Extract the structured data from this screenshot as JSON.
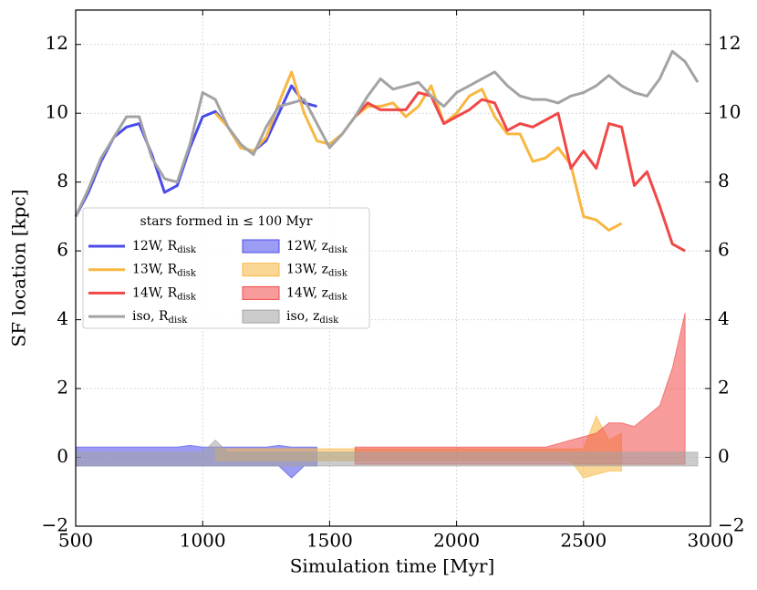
{
  "chart_data": {
    "type": "line",
    "xlabel": "Simulation time [Myr]",
    "ylabel": "SF location [kpc]",
    "xlim": [
      500,
      3000
    ],
    "ylim": [
      -2,
      13
    ],
    "xticks": [
      500,
      1000,
      1500,
      2000,
      2500,
      3000
    ],
    "yticks": [
      {
        "value": -2,
        "label": "−2"
      },
      0,
      2,
      4,
      6,
      8,
      10,
      12
    ],
    "grid": true,
    "legend_title": "stars formed in ≤ 100 Myr",
    "x": [
      500,
      550,
      600,
      650,
      700,
      750,
      800,
      850,
      900,
      950,
      1000,
      1050,
      1100,
      1150,
      1200,
      1250,
      1300,
      1350,
      1400,
      1450,
      1500,
      1550,
      1600,
      1650,
      1700,
      1750,
      1800,
      1850,
      1900,
      1950,
      2000,
      2050,
      2100,
      2150,
      2200,
      2250,
      2300,
      2350,
      2400,
      2450,
      2500,
      2550,
      2600,
      2650,
      2700,
      2750,
      2800,
      2850,
      2900,
      2950,
      3000
    ],
    "series": [
      {
        "name": "12W, R",
        "subscript": "disk",
        "color": "#4b4bea",
        "values": [
          7.0,
          7.7,
          8.6,
          9.3,
          9.6,
          9.7,
          8.8,
          7.7,
          7.9,
          9.0,
          9.9,
          10.05,
          9.6,
          9.0,
          8.9,
          9.2,
          10.0,
          10.8,
          10.3,
          10.2,
          null,
          null,
          null,
          null,
          null,
          null,
          null,
          null,
          null,
          null,
          null,
          null,
          null,
          null,
          null,
          null,
          null,
          null,
          null,
          null,
          null,
          null,
          null,
          null,
          null,
          null,
          null,
          null,
          null,
          null,
          null
        ]
      },
      {
        "name": "13W, R",
        "subscript": "disk",
        "color": "#f8b740",
        "values": [
          null,
          null,
          null,
          null,
          null,
          null,
          null,
          null,
          null,
          null,
          null,
          10.0,
          9.6,
          9.0,
          8.9,
          9.3,
          10.3,
          11.2,
          10.0,
          9.2,
          9.1,
          9.4,
          9.9,
          10.2,
          10.2,
          10.3,
          9.9,
          10.2,
          10.8,
          9.7,
          10.0,
          10.5,
          10.7,
          9.9,
          9.4,
          9.4,
          8.6,
          8.7,
          9.0,
          8.5,
          7.0,
          6.9,
          6.6,
          6.8,
          null,
          null,
          null,
          null,
          null,
          null,
          null
        ]
      },
      {
        "name": "14W, R",
        "subscript": "disk",
        "color": "#f04848",
        "values": [
          null,
          null,
          null,
          null,
          null,
          null,
          null,
          null,
          null,
          null,
          null,
          null,
          null,
          null,
          null,
          null,
          null,
          null,
          null,
          null,
          null,
          null,
          9.9,
          10.3,
          10.1,
          10.1,
          10.1,
          10.6,
          10.5,
          9.7,
          9.9,
          10.1,
          10.4,
          10.3,
          9.5,
          9.7,
          9.6,
          9.8,
          10.0,
          8.4,
          8.9,
          8.4,
          9.7,
          9.6,
          7.9,
          8.3,
          7.3,
          6.2,
          6.0,
          null,
          null
        ]
      },
      {
        "name": "iso, R",
        "subscript": "disk",
        "color": "#a3a3a3",
        "values": [
          7.0,
          7.8,
          8.7,
          9.3,
          9.9,
          9.9,
          8.7,
          8.1,
          8.0,
          9.1,
          10.6,
          10.4,
          9.6,
          9.1,
          8.8,
          9.6,
          10.2,
          10.3,
          10.4,
          9.7,
          9.0,
          9.4,
          9.9,
          10.5,
          11.0,
          10.7,
          10.8,
          10.9,
          10.5,
          10.2,
          10.6,
          10.8,
          11.0,
          11.2,
          10.8,
          10.5,
          10.4,
          10.4,
          10.3,
          10.5,
          10.6,
          10.8,
          11.1,
          10.8,
          10.6,
          10.5,
          11.0,
          11.8,
          11.5,
          10.9,
          null
        ]
      }
    ],
    "bands": [
      {
        "name": "12W, z",
        "subscript": "disk",
        "color": "#4b4bea",
        "lower": [
          -0.25,
          -0.25,
          -0.25,
          -0.25,
          -0.25,
          -0.25,
          -0.25,
          -0.25,
          -0.25,
          -0.25,
          -0.25,
          -0.25,
          -0.25,
          -0.25,
          -0.25,
          -0.25,
          -0.25,
          -0.6,
          -0.25,
          -0.25,
          null,
          null,
          null,
          null,
          null,
          null,
          null,
          null,
          null,
          null,
          null,
          null,
          null,
          null,
          null,
          null,
          null,
          null,
          null,
          null,
          null,
          null,
          null,
          null,
          null,
          null,
          null,
          null,
          null,
          null,
          null
        ],
        "upper": [
          0.3,
          0.3,
          0.3,
          0.3,
          0.3,
          0.3,
          0.3,
          0.3,
          0.3,
          0.35,
          0.3,
          0.3,
          0.3,
          0.3,
          0.3,
          0.3,
          0.35,
          0.3,
          0.3,
          0.3,
          null,
          null,
          null,
          null,
          null,
          null,
          null,
          null,
          null,
          null,
          null,
          null,
          null,
          null,
          null,
          null,
          null,
          null,
          null,
          null,
          null,
          null,
          null,
          null,
          null,
          null,
          null,
          null,
          null,
          null,
          null
        ]
      },
      {
        "name": "13W, z",
        "subscript": "disk",
        "color": "#f8b740",
        "lower": [
          null,
          null,
          null,
          null,
          null,
          null,
          null,
          null,
          null,
          null,
          null,
          -0.1,
          -0.1,
          -0.1,
          -0.1,
          -0.1,
          -0.1,
          -0.1,
          -0.1,
          -0.1,
          -0.1,
          -0.1,
          -0.1,
          -0.1,
          -0.1,
          -0.1,
          -0.1,
          -0.1,
          -0.1,
          -0.1,
          -0.1,
          -0.1,
          -0.1,
          -0.1,
          -0.1,
          -0.1,
          -0.1,
          -0.1,
          -0.1,
          -0.1,
          -0.6,
          -0.5,
          -0.4,
          -0.4,
          null,
          null,
          null,
          null,
          null,
          null,
          null
        ],
        "upper": [
          null,
          null,
          null,
          null,
          null,
          null,
          null,
          null,
          null,
          null,
          null,
          0.25,
          0.25,
          0.25,
          0.25,
          0.25,
          0.25,
          0.25,
          0.25,
          0.25,
          0.25,
          0.25,
          0.25,
          0.25,
          0.25,
          0.25,
          0.25,
          0.25,
          0.25,
          0.25,
          0.25,
          0.25,
          0.25,
          0.25,
          0.25,
          0.25,
          0.25,
          0.25,
          0.25,
          0.25,
          0.25,
          1.2,
          0.5,
          0.7,
          null,
          null,
          null,
          null,
          null,
          null,
          null
        ]
      },
      {
        "name": "14W, z",
        "subscript": "disk",
        "color": "#f04848",
        "lower": [
          null,
          null,
          null,
          null,
          null,
          null,
          null,
          null,
          null,
          null,
          null,
          null,
          null,
          null,
          null,
          null,
          null,
          null,
          null,
          null,
          null,
          null,
          -0.2,
          -0.2,
          -0.2,
          -0.2,
          -0.2,
          -0.2,
          -0.2,
          -0.2,
          -0.2,
          -0.2,
          -0.2,
          -0.2,
          -0.2,
          -0.2,
          -0.2,
          -0.2,
          -0.2,
          -0.2,
          -0.2,
          -0.2,
          -0.2,
          -0.2,
          -0.2,
          -0.2,
          -0.2,
          -0.2,
          -0.2,
          null,
          null
        ],
        "upper": [
          null,
          null,
          null,
          null,
          null,
          null,
          null,
          null,
          null,
          null,
          null,
          null,
          null,
          null,
          null,
          null,
          null,
          null,
          null,
          null,
          null,
          null,
          0.3,
          0.3,
          0.3,
          0.3,
          0.3,
          0.3,
          0.3,
          0.3,
          0.3,
          0.3,
          0.3,
          0.3,
          0.3,
          0.3,
          0.3,
          0.3,
          0.4,
          0.5,
          0.6,
          0.7,
          1.0,
          1.0,
          0.9,
          1.2,
          1.5,
          2.6,
          4.2,
          null,
          null
        ]
      },
      {
        "name": "iso, z",
        "subscript": "disk",
        "color": "#a3a3a3",
        "lower": [
          -0.25,
          -0.25,
          -0.25,
          -0.25,
          -0.25,
          -0.25,
          -0.25,
          -0.25,
          -0.25,
          -0.25,
          -0.25,
          -0.25,
          -0.25,
          -0.25,
          -0.25,
          -0.25,
          -0.25,
          -0.25,
          -0.25,
          -0.25,
          -0.25,
          -0.25,
          -0.25,
          -0.25,
          -0.25,
          -0.25,
          -0.25,
          -0.25,
          -0.25,
          -0.25,
          -0.25,
          -0.25,
          -0.25,
          -0.25,
          -0.25,
          -0.25,
          -0.25,
          -0.25,
          -0.25,
          -0.25,
          -0.25,
          -0.25,
          -0.25,
          -0.25,
          -0.25,
          -0.25,
          -0.25,
          -0.25,
          -0.25,
          -0.25,
          null
        ],
        "upper": [
          0.15,
          0.15,
          0.15,
          0.15,
          0.15,
          0.15,
          0.15,
          0.15,
          0.15,
          0.15,
          0.15,
          0.5,
          0.15,
          0.15,
          0.15,
          0.15,
          0.15,
          0.15,
          0.15,
          0.15,
          0.15,
          0.15,
          0.15,
          0.15,
          0.15,
          0.15,
          0.15,
          0.15,
          0.15,
          0.15,
          0.15,
          0.15,
          0.15,
          0.15,
          0.15,
          0.15,
          0.15,
          0.15,
          0.15,
          0.15,
          0.15,
          0.15,
          0.15,
          0.15,
          0.15,
          0.15,
          0.15,
          0.15,
          0.15,
          0.15,
          null
        ]
      }
    ]
  }
}
